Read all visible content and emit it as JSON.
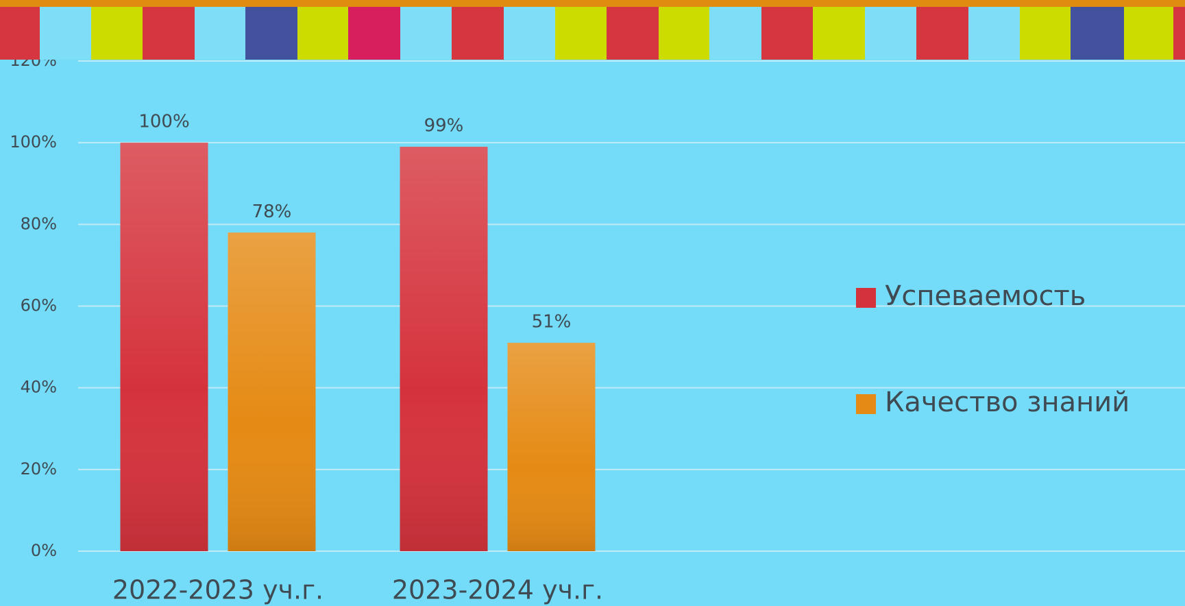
{
  "chart_data": {
    "type": "bar",
    "categories": [
      "2022-2023 уч.г.",
      "2023-2024 уч.г."
    ],
    "series": [
      {
        "name": "Успеваемость",
        "color": "#d5333c",
        "values": [
          100,
          99
        ],
        "value_labels": [
          "100%",
          "99%"
        ]
      },
      {
        "name": "Качество знаний",
        "color": "#e58a14",
        "values": [
          78,
          51
        ],
        "value_labels": [
          "78%",
          "51%"
        ]
      }
    ],
    "ylim": [
      0,
      120
    ],
    "yticks": [
      {
        "value": 0,
        "label": "0%"
      },
      {
        "value": 20,
        "label": "20%"
      },
      {
        "value": 40,
        "label": "40%"
      },
      {
        "value": 60,
        "label": "60%"
      },
      {
        "value": 80,
        "label": "80%"
      },
      {
        "value": 100,
        "label": "100%"
      },
      {
        "value": 120,
        "label": "120%"
      }
    ],
    "grid": true,
    "legend": "right"
  }
}
